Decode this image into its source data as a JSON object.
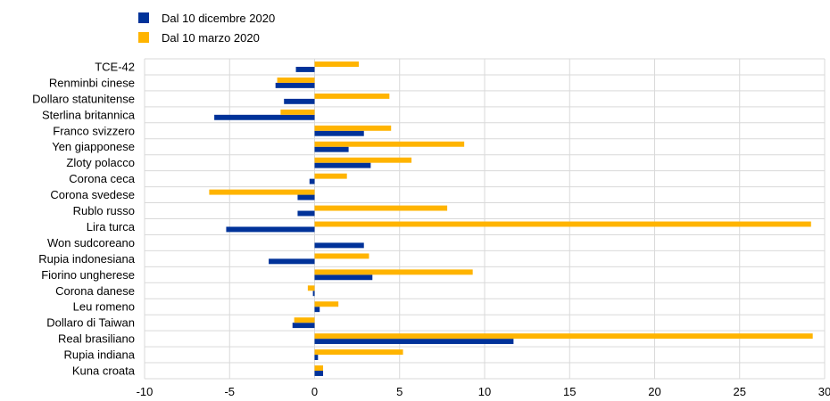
{
  "chart_data": {
    "type": "bar",
    "orientation": "horizontal",
    "categories": [
      "TCE-42",
      "Renminbi cinese",
      "Dollaro statunitense",
      "Sterlina britannica",
      "Franco svizzero",
      "Yen giapponese",
      "Zloty polacco",
      "Corona ceca",
      "Corona svedese",
      "Rublo russo",
      "Lira turca",
      "Won sudcoreano",
      "Rupia indonesiana",
      "Fiorino ungherese",
      "Corona danese",
      "Leu romeno",
      "Dollaro di Taiwan",
      "Real brasiliano",
      "Rupia indiana",
      "Kuna croata"
    ],
    "series": [
      {
        "name": "Dal 10 dicembre 2020",
        "color": "#003299",
        "values": [
          -1.1,
          -2.3,
          -1.8,
          -5.9,
          2.9,
          2.0,
          3.3,
          -0.3,
          -1.0,
          -1.0,
          -5.2,
          2.9,
          -2.7,
          3.4,
          -0.1,
          0.3,
          -1.3,
          11.7,
          0.2,
          0.5
        ]
      },
      {
        "name": "Dal 10 marzo 2020",
        "color": "#FFB400",
        "values": [
          2.6,
          -2.2,
          4.4,
          -2.0,
          4.5,
          8.8,
          5.7,
          1.9,
          -6.2,
          7.8,
          29.2,
          0.0,
          3.2,
          9.3,
          -0.4,
          1.4,
          -1.2,
          29.3,
          5.2,
          0.5
        ]
      }
    ],
    "xlim": [
      -10,
      30
    ],
    "xticks": [
      "-10",
      "-5",
      "0",
      "5",
      "10",
      "15",
      "20",
      "25",
      "30"
    ],
    "grid": true,
    "legend_position": "top-left"
  }
}
